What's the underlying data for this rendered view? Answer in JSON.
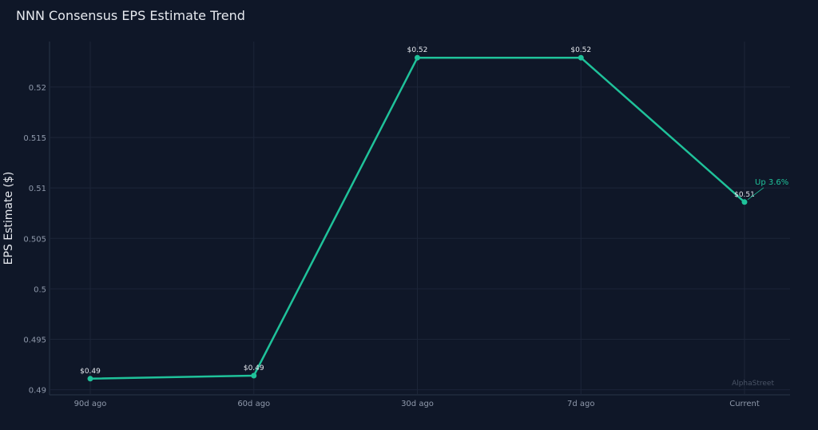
{
  "title": "NNN Consensus EPS Estimate Trend",
  "chart_data": {
    "type": "line",
    "title": "NNN Consensus EPS Estimate Trend",
    "xlabel": "",
    "ylabel": "EPS Estimate ($)",
    "categories": [
      "90d ago",
      "60d ago",
      "30d ago",
      "7d ago",
      "Current"
    ],
    "series": [
      {
        "values": [
          0.4911,
          0.4914,
          0.5229,
          0.5229,
          0.5086
        ],
        "labels": [
          "$0.49",
          "$0.49",
          "$0.52",
          "$0.52",
          "$0.51"
        ],
        "color": "#1fc29a"
      }
    ],
    "ylim": [
      0.4895,
      0.5245
    ],
    "yticks": [
      0.49,
      0.495,
      0.5,
      0.505,
      0.51,
      0.515,
      0.52
    ],
    "ytick_labels": [
      "0.49",
      "0.495",
      "0.5",
      "0.505",
      "0.51",
      "0.515",
      "0.52"
    ],
    "grid": true,
    "annotation": {
      "text": "Up 3.6%",
      "category": "Current",
      "color": "#1fc29a"
    },
    "watermark": "AlphaStreet"
  }
}
